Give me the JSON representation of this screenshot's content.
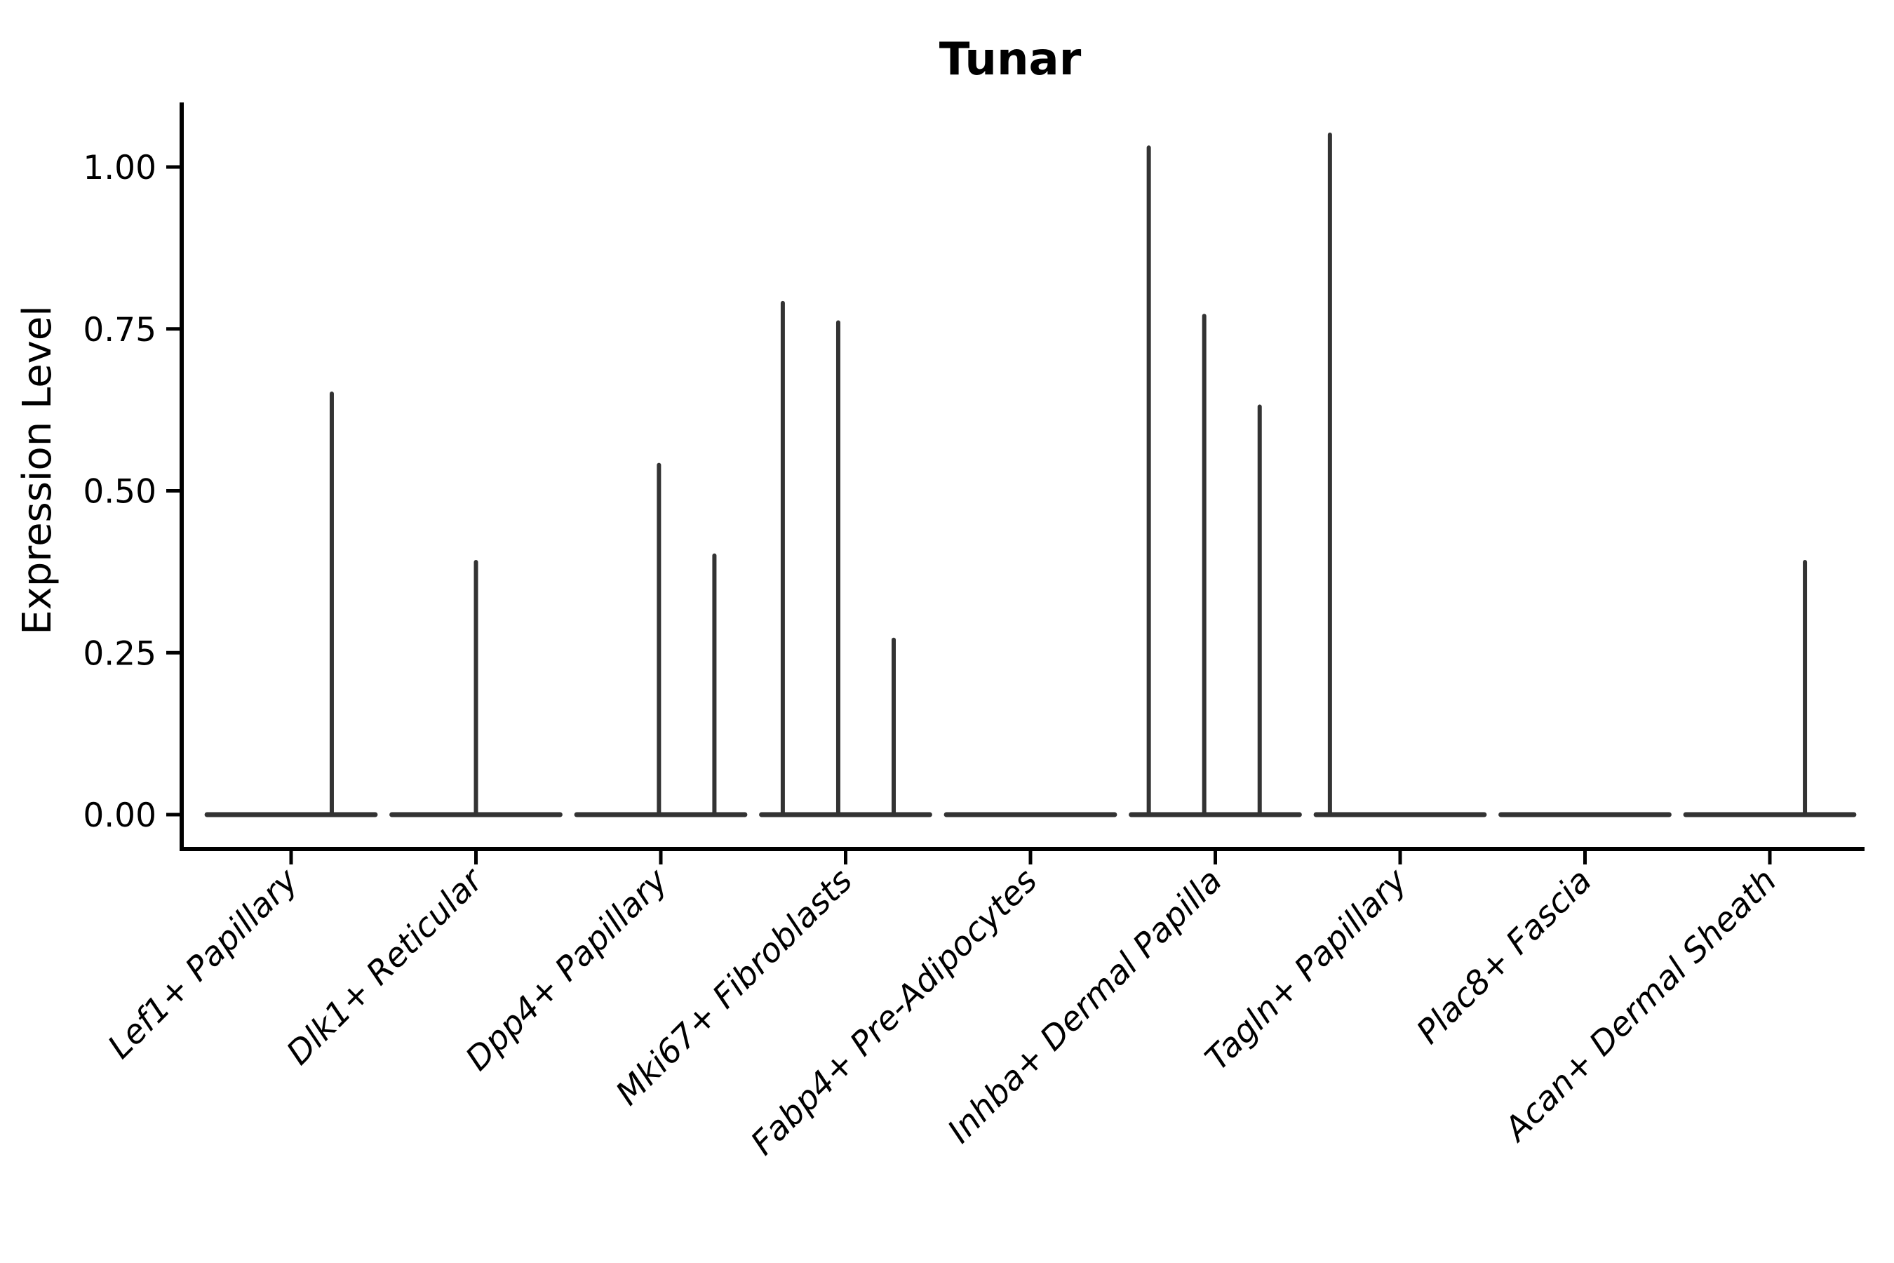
{
  "chart_data": {
    "type": "violin",
    "title": "Tunar",
    "xlabel": "",
    "ylabel": "Expression Level",
    "ytick_labels": [
      "0.00",
      "0.25",
      "0.50",
      "0.75",
      "1.00"
    ],
    "ytick_values": [
      0.0,
      0.25,
      0.5,
      0.75,
      1.0
    ],
    "ylim": [
      -0.05,
      1.1
    ],
    "grid": false,
    "legend_position": "none",
    "categories": [
      "Lef1+ Papillary",
      "Dlk1+ Reticular",
      "Dpp4+ Papillary",
      "Mki67+ Fibroblasts",
      "Fabp4+ Pre-Adipocytes",
      "Inhba+ Dermal Papilla",
      "Tagln+ Papillary",
      "Plac8+ Fascia",
      "Acan+ Dermal Sheath"
    ],
    "series": [
      {
        "category": "Lef1+ Papillary",
        "violin_width": 0.91,
        "spikes": [
          {
            "x_offset": 0.22,
            "peak": 0.65
          }
        ]
      },
      {
        "category": "Dlk1+ Reticular",
        "violin_width": 0.91,
        "spikes": [
          {
            "x_offset": 0.0,
            "peak": 0.39
          }
        ]
      },
      {
        "category": "Dpp4+ Papillary",
        "violin_width": 0.91,
        "spikes": [
          {
            "x_offset": -0.01,
            "peak": 0.54
          },
          {
            "x_offset": 0.29,
            "peak": 0.4
          }
        ]
      },
      {
        "category": "Mki67+ Fibroblasts",
        "violin_width": 0.91,
        "spikes": [
          {
            "x_offset": -0.34,
            "peak": 0.79
          },
          {
            "x_offset": -0.04,
            "peak": 0.76
          },
          {
            "x_offset": 0.26,
            "peak": 0.27
          }
        ]
      },
      {
        "category": "Fabp4+ Pre-Adipocytes",
        "violin_width": 0.91,
        "spikes": []
      },
      {
        "category": "Inhba+ Dermal Papilla",
        "violin_width": 0.91,
        "spikes": [
          {
            "x_offset": -0.36,
            "peak": 1.03
          },
          {
            "x_offset": -0.06,
            "peak": 0.77
          },
          {
            "x_offset": 0.24,
            "peak": 0.63
          }
        ]
      },
      {
        "category": "Tagln+ Papillary",
        "violin_width": 0.91,
        "spikes": [
          {
            "x_offset": -0.38,
            "peak": 1.05
          }
        ]
      },
      {
        "category": "Plac8+ Fascia",
        "violin_width": 0.91,
        "spikes": []
      },
      {
        "category": "Acan+ Dermal Sheath",
        "violin_width": 0.91,
        "spikes": [
          {
            "x_offset": 0.19,
            "peak": 0.39
          }
        ]
      }
    ],
    "style": {
      "violin_color": "#333333",
      "axis_color": "#000000",
      "background_color": "#ffffff"
    }
  }
}
